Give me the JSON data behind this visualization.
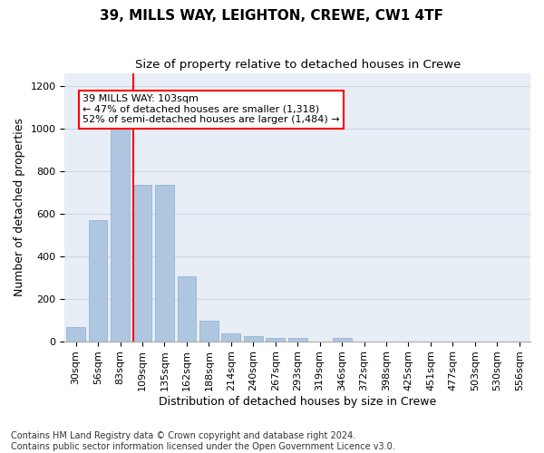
{
  "title1": "39, MILLS WAY, LEIGHTON, CREWE, CW1 4TF",
  "title2": "Size of property relative to detached houses in Crewe",
  "xlabel": "Distribution of detached houses by size in Crewe",
  "ylabel": "Number of detached properties",
  "categories": [
    "30sqm",
    "56sqm",
    "83sqm",
    "109sqm",
    "135sqm",
    "162sqm",
    "188sqm",
    "214sqm",
    "240sqm",
    "267sqm",
    "293sqm",
    "319sqm",
    "346sqm",
    "372sqm",
    "398sqm",
    "425sqm",
    "451sqm",
    "477sqm",
    "503sqm",
    "530sqm",
    "556sqm"
  ],
  "values": [
    65,
    570,
    1000,
    735,
    735,
    305,
    95,
    38,
    25,
    15,
    15,
    0,
    15,
    0,
    0,
    0,
    0,
    0,
    0,
    0,
    0
  ],
  "bar_color": "#aec6df",
  "bar_edge_color": "#8aaecf",
  "vline_color": "red",
  "annotation_text": "39 MILLS WAY: 103sqm\n← 47% of detached houses are smaller (1,318)\n52% of semi-detached houses are larger (1,484) →",
  "annotation_box_color": "white",
  "annotation_box_edge_color": "red",
  "ylim": [
    0,
    1260
  ],
  "yticks": [
    0,
    200,
    400,
    600,
    800,
    1000,
    1200
  ],
  "grid_color": "#cdd5e5",
  "background_color": "#e8eef5",
  "footnote": "Contains HM Land Registry data © Crown copyright and database right 2024.\nContains public sector information licensed under the Open Government Licence v3.0.",
  "title1_fontsize": 11,
  "title2_fontsize": 9.5,
  "xlabel_fontsize": 9,
  "ylabel_fontsize": 9,
  "tick_fontsize": 8,
  "annot_fontsize": 8,
  "footnote_fontsize": 7
}
